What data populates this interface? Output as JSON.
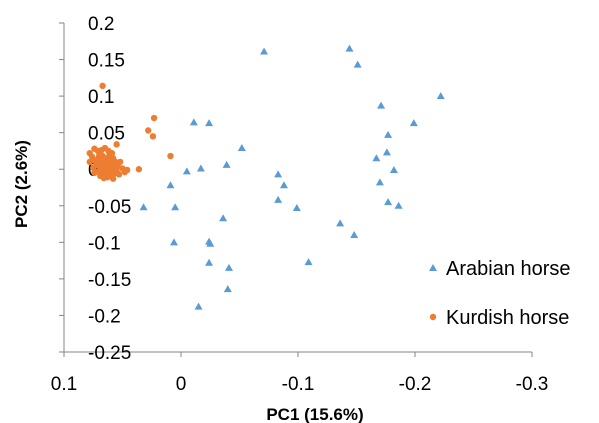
{
  "chart_data": {
    "type": "scatter",
    "xlabel": "PC1 (15.6%)",
    "ylabel": "PC2 (2.6%)",
    "xlim": [
      0.1,
      -0.3
    ],
    "ylim": [
      -0.25,
      0.2
    ],
    "x_reversed": true,
    "x_ticks": [
      "0.1",
      "0",
      "-0.1",
      "-0.2",
      "-0.3"
    ],
    "y_ticks": [
      "0.2",
      "0.15",
      "0.1",
      "0.05",
      "0",
      "-0.05",
      "-0.1",
      "-0.15",
      "-0.2",
      "-0.25"
    ],
    "grid": false,
    "legend_position": "right",
    "series": [
      {
        "name": "Arabian horse",
        "marker": "triangle",
        "color": "#5B9BD5",
        "points": [
          [
            -0.071,
            0.161
          ],
          [
            -0.144,
            0.165
          ],
          [
            -0.151,
            0.143
          ],
          [
            -0.222,
            0.1
          ],
          [
            -0.171,
            0.087
          ],
          [
            -0.199,
            0.063
          ],
          [
            -0.011,
            0.064
          ],
          [
            -0.024,
            0.063
          ],
          [
            -0.177,
            0.047
          ],
          [
            -0.052,
            0.029
          ],
          [
            -0.167,
            0.015
          ],
          [
            -0.176,
            0.023
          ],
          [
            -0.039,
            0.006
          ],
          [
            -0.017,
            0.001
          ],
          [
            -0.005,
            -0.003
          ],
          [
            -0.182,
            -0.001
          ],
          [
            -0.083,
            -0.007
          ],
          [
            -0.088,
            -0.022
          ],
          [
            -0.17,
            -0.018
          ],
          [
            0.009,
            -0.022
          ],
          [
            0.032,
            -0.052
          ],
          [
            -0.083,
            -0.042
          ],
          [
            -0.099,
            -0.053
          ],
          [
            -0.177,
            -0.045
          ],
          [
            -0.186,
            -0.05
          ],
          [
            0.005,
            -0.052
          ],
          [
            -0.036,
            -0.067
          ],
          [
            -0.136,
            -0.074
          ],
          [
            -0.148,
            -0.09
          ],
          [
            0.006,
            -0.1
          ],
          [
            -0.024,
            -0.099
          ],
          [
            -0.025,
            -0.102
          ],
          [
            -0.024,
            -0.128
          ],
          [
            -0.109,
            -0.127
          ],
          [
            -0.041,
            -0.135
          ],
          [
            -0.04,
            -0.164
          ],
          [
            -0.015,
            -0.188
          ]
        ]
      },
      {
        "name": "Kurdish horse",
        "marker": "circle",
        "color": "#ED7D31",
        "points": [
          [
            0.067,
            0.114
          ],
          [
            0.023,
            0.07
          ],
          [
            0.028,
            0.053
          ],
          [
            0.024,
            0.045
          ],
          [
            0.009,
            0.018
          ],
          [
            0.055,
            0.034
          ],
          [
            0.065,
            0.029
          ],
          [
            0.068,
            0.026
          ],
          [
            0.074,
            0.028
          ],
          [
            0.071,
            0.025
          ],
          [
            0.062,
            0.025
          ],
          [
            0.078,
            0.022
          ],
          [
            0.059,
            0.022
          ],
          [
            0.076,
            0.017
          ],
          [
            0.067,
            0.018
          ],
          [
            0.063,
            0.015
          ],
          [
            0.058,
            0.015
          ],
          [
            0.071,
            0.014
          ],
          [
            0.066,
            0.011
          ],
          [
            0.074,
            0.012
          ],
          [
            0.061,
            0.01
          ],
          [
            0.056,
            0.01
          ],
          [
            0.078,
            0.01
          ],
          [
            0.069,
            0.008
          ],
          [
            0.064,
            0.007
          ],
          [
            0.072,
            0.006
          ],
          [
            0.059,
            0.006
          ],
          [
            0.066,
            0.004
          ],
          [
            0.061,
            0.003
          ],
          [
            0.068,
            0.002
          ],
          [
            0.056,
            0.002
          ],
          [
            0.075,
            0.002
          ],
          [
            0.063,
            0.0
          ],
          [
            0.058,
            -0.001
          ],
          [
            0.066,
            -0.002
          ],
          [
            0.071,
            -0.003
          ],
          [
            0.06,
            -0.004
          ],
          [
            0.064,
            -0.005
          ],
          [
            0.057,
            -0.006
          ],
          [
            0.067,
            -0.007
          ],
          [
            0.061,
            -0.008
          ],
          [
            0.055,
            -0.003
          ],
          [
            0.054,
            0.004
          ],
          [
            0.074,
            -0.005
          ],
          [
            0.069,
            -0.009
          ],
          [
            0.063,
            -0.011
          ],
          [
            0.052,
            0.01
          ],
          [
            0.05,
            0.001
          ],
          [
            0.046,
            -0.001
          ],
          [
            0.036,
            0.0
          ],
          [
            0.058,
            -0.013
          ],
          [
            0.066,
            -0.012
          ],
          [
            0.053,
            -0.007
          ],
          [
            0.048,
            -0.004
          ],
          [
            0.061,
            0.02
          ],
          [
            0.07,
            0.018
          ]
        ]
      }
    ]
  }
}
